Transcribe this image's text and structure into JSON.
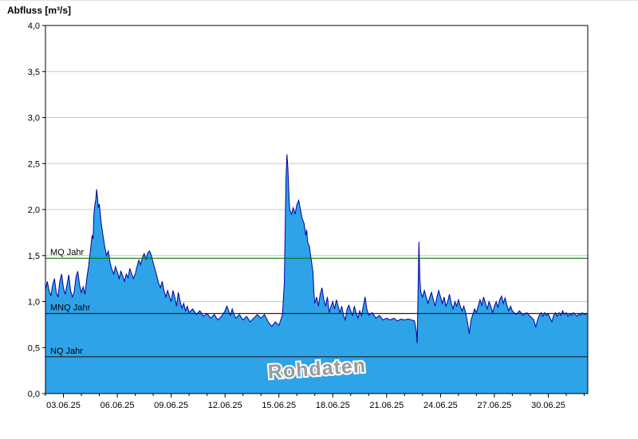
{
  "title": "Abfluss [m³/s]",
  "watermark": "Rohdaten",
  "colors": {
    "area_fill": "#2EA3E8",
    "line": "#0000A0",
    "grid": "#C9C9C9",
    "axis": "#000000",
    "watermark": "#9A9A9A",
    "background": "#FFFFFF"
  },
  "chart_data": {
    "type": "area",
    "title": "Abfluss [m³/s]",
    "ylabel": "Abfluss [m³/s]",
    "xlabel": "",
    "grid": "horizontal",
    "legend_position": "none",
    "ylim": [
      0,
      4
    ],
    "xlim": [
      0,
      30.2
    ],
    "x_unit": "days (axis starts 02.06.25, labels every 3 days)",
    "yticks": [
      0,
      0.5,
      1,
      1.5,
      2,
      2.5,
      3,
      3.5,
      4
    ],
    "ytick_labels": [
      "0,0",
      "0,5",
      "1,0",
      "1,5",
      "2,0",
      "2,5",
      "3,0",
      "3,5",
      "4,0"
    ],
    "xtick_positions": [
      1,
      4,
      7,
      10,
      13,
      16,
      19,
      22,
      25,
      28
    ],
    "xtick_labels": [
      "03.06.25",
      "06.06.25",
      "09.06.25",
      "12.06.25",
      "15.06.25",
      "18.06.25",
      "21.06.25",
      "24.06.25",
      "27.06.25",
      "30.06.25"
    ],
    "reference_lines": [
      {
        "label": "MQ Jahr",
        "value": 1.47,
        "color": "#007A00"
      },
      {
        "label": "MNQ Jahr",
        "value": 0.87,
        "color": "#222222"
      },
      {
        "label": "NQ Jahr",
        "value": 0.4,
        "color": "#222222"
      }
    ],
    "series": [
      {
        "name": "Rohdaten",
        "points": [
          [
            0,
            1.13
          ],
          [
            0.1,
            1.22
          ],
          [
            0.2,
            1.12
          ],
          [
            0.3,
            1.06
          ],
          [
            0.4,
            1.18
          ],
          [
            0.5,
            1.25
          ],
          [
            0.6,
            1.1
          ],
          [
            0.7,
            1.05
          ],
          [
            0.8,
            1.22
          ],
          [
            0.9,
            1.3
          ],
          [
            1,
            1.15
          ],
          [
            1.1,
            1.08
          ],
          [
            1.2,
            1.18
          ],
          [
            1.3,
            1.29
          ],
          [
            1.4,
            1.12
          ],
          [
            1.5,
            1.05
          ],
          [
            1.6,
            1.1
          ],
          [
            1.7,
            1.27
          ],
          [
            1.8,
            1.33
          ],
          [
            1.9,
            1.18
          ],
          [
            2,
            1.1
          ],
          [
            2.1,
            1.16
          ],
          [
            2.2,
            1.08
          ],
          [
            2.3,
            1.25
          ],
          [
            2.4,
            1.38
          ],
          [
            2.5,
            1.55
          ],
          [
            2.6,
            1.72
          ],
          [
            2.65,
            1.68
          ],
          [
            2.7,
            1.95
          ],
          [
            2.75,
            2.05
          ],
          [
            2.8,
            2.1
          ],
          [
            2.85,
            2.22
          ],
          [
            2.9,
            2.12
          ],
          [
            2.95,
            2.02
          ],
          [
            3,
            2.06
          ],
          [
            3.05,
            1.96
          ],
          [
            3.1,
            1.86
          ],
          [
            3.2,
            1.72
          ],
          [
            3.3,
            1.6
          ],
          [
            3.4,
            1.5
          ],
          [
            3.5,
            1.55
          ],
          [
            3.6,
            1.42
          ],
          [
            3.7,
            1.35
          ],
          [
            3.8,
            1.3
          ],
          [
            3.9,
            1.38
          ],
          [
            4,
            1.32
          ],
          [
            4.1,
            1.25
          ],
          [
            4.2,
            1.33
          ],
          [
            4.3,
            1.28
          ],
          [
            4.4,
            1.22
          ],
          [
            4.5,
            1.3
          ],
          [
            4.6,
            1.26
          ],
          [
            4.7,
            1.36
          ],
          [
            4.8,
            1.3
          ],
          [
            4.9,
            1.25
          ],
          [
            5,
            1.3
          ],
          [
            5.1,
            1.38
          ],
          [
            5.2,
            1.45
          ],
          [
            5.3,
            1.4
          ],
          [
            5.4,
            1.48
          ],
          [
            5.5,
            1.52
          ],
          [
            5.6,
            1.46
          ],
          [
            5.7,
            1.53
          ],
          [
            5.8,
            1.55
          ],
          [
            5.9,
            1.5
          ],
          [
            6,
            1.42
          ],
          [
            6.1,
            1.35
          ],
          [
            6.2,
            1.28
          ],
          [
            6.3,
            1.2
          ],
          [
            6.4,
            1.15
          ],
          [
            6.5,
            1.22
          ],
          [
            6.6,
            1.12
          ],
          [
            6.7,
            1.05
          ],
          [
            6.8,
            1.12
          ],
          [
            6.9,
            1.06
          ],
          [
            7,
            1
          ],
          [
            7.1,
            1.12
          ],
          [
            7.2,
            1.05
          ],
          [
            7.3,
            0.95
          ],
          [
            7.4,
            1.1
          ],
          [
            7.5,
            1
          ],
          [
            7.6,
            0.93
          ],
          [
            7.7,
            0.98
          ],
          [
            7.8,
            0.9
          ],
          [
            7.9,
            0.95
          ],
          [
            8,
            0.88
          ],
          [
            8.2,
            0.92
          ],
          [
            8.4,
            0.86
          ],
          [
            8.6,
            0.9
          ],
          [
            8.8,
            0.84
          ],
          [
            9,
            0.87
          ],
          [
            9.2,
            0.82
          ],
          [
            9.4,
            0.86
          ],
          [
            9.6,
            0.8
          ],
          [
            9.8,
            0.84
          ],
          [
            10,
            0.9
          ],
          [
            10.1,
            0.95
          ],
          [
            10.2,
            0.9
          ],
          [
            10.3,
            0.85
          ],
          [
            10.4,
            0.92
          ],
          [
            10.5,
            0.86
          ],
          [
            10.6,
            0.82
          ],
          [
            10.8,
            0.86
          ],
          [
            11,
            0.8
          ],
          [
            11.2,
            0.84
          ],
          [
            11.4,
            0.78
          ],
          [
            11.6,
            0.82
          ],
          [
            11.8,
            0.86
          ],
          [
            12,
            0.82
          ],
          [
            12.2,
            0.86
          ],
          [
            12.4,
            0.78
          ],
          [
            12.6,
            0.73
          ],
          [
            12.8,
            0.78
          ],
          [
            13,
            0.74
          ],
          [
            13.1,
            0.8
          ],
          [
            13.2,
            0.86
          ],
          [
            13.3,
            1.2
          ],
          [
            13.35,
            1.8
          ],
          [
            13.4,
            2.35
          ],
          [
            13.45,
            2.6
          ],
          [
            13.5,
            2.45
          ],
          [
            13.55,
            2.2
          ],
          [
            13.6,
            2
          ],
          [
            13.7,
            1.95
          ],
          [
            13.8,
            2.02
          ],
          [
            13.9,
            1.95
          ],
          [
            14,
            2.05
          ],
          [
            14.1,
            2.1
          ],
          [
            14.2,
            2
          ],
          [
            14.3,
            1.9
          ],
          [
            14.4,
            1.85
          ],
          [
            14.5,
            1.72
          ],
          [
            14.55,
            1.78
          ],
          [
            14.6,
            1.65
          ],
          [
            14.7,
            1.6
          ],
          [
            14.75,
            1.52
          ],
          [
            14.8,
            1.46
          ],
          [
            14.9,
            1.32
          ],
          [
            14.95,
            1.1
          ],
          [
            15,
            0.98
          ],
          [
            15.1,
            1.05
          ],
          [
            15.2,
            0.95
          ],
          [
            15.3,
            1.08
          ],
          [
            15.4,
            1.15
          ],
          [
            15.5,
            1.02
          ],
          [
            15.6,
            0.95
          ],
          [
            15.7,
            1.05
          ],
          [
            15.8,
            0.88
          ],
          [
            15.9,
            0.95
          ],
          [
            16,
            1
          ],
          [
            16.1,
            0.92
          ],
          [
            16.2,
            1.02
          ],
          [
            16.3,
            0.95
          ],
          [
            16.4,
            0.88
          ],
          [
            16.5,
            0.95
          ],
          [
            16.6,
            0.85
          ],
          [
            16.7,
            0.8
          ],
          [
            16.8,
            0.92
          ],
          [
            16.9,
            0.96
          ],
          [
            17,
            0.9
          ],
          [
            17.1,
            0.85
          ],
          [
            17.2,
            0.95
          ],
          [
            17.3,
            0.88
          ],
          [
            17.4,
            0.82
          ],
          [
            17.5,
            0.9
          ],
          [
            17.6,
            0.85
          ],
          [
            17.7,
            0.95
          ],
          [
            17.8,
            1.05
          ],
          [
            17.9,
            0.92
          ],
          [
            18,
            0.85
          ],
          [
            18.2,
            0.88
          ],
          [
            18.4,
            0.82
          ],
          [
            18.6,
            0.85
          ],
          [
            18.8,
            0.8
          ],
          [
            19,
            0.82
          ],
          [
            19.2,
            0.8
          ],
          [
            19.4,
            0.82
          ],
          [
            19.6,
            0.79
          ],
          [
            19.8,
            0.81
          ],
          [
            20,
            0.8
          ],
          [
            20.2,
            0.81
          ],
          [
            20.4,
            0.8
          ],
          [
            20.55,
            0.79
          ],
          [
            20.65,
            0.68
          ],
          [
            20.7,
            0.55
          ],
          [
            20.75,
            1.1
          ],
          [
            20.8,
            1.65
          ],
          [
            20.85,
            1.25
          ],
          [
            20.9,
            1.1
          ],
          [
            21,
            1.05
          ],
          [
            21.1,
            1.12
          ],
          [
            21.2,
            1.05
          ],
          [
            21.3,
            0.98
          ],
          [
            21.4,
            1.05
          ],
          [
            21.5,
            1.1
          ],
          [
            21.6,
            1.02
          ],
          [
            21.7,
            0.95
          ],
          [
            21.8,
            1.05
          ],
          [
            21.9,
            1.12
          ],
          [
            22,
            1.05
          ],
          [
            22.1,
            0.98
          ],
          [
            22.2,
            1.05
          ],
          [
            22.3,
            0.95
          ],
          [
            22.4,
            1
          ],
          [
            22.5,
            1.08
          ],
          [
            22.6,
            0.98
          ],
          [
            22.7,
            0.92
          ],
          [
            22.8,
            1
          ],
          [
            22.9,
            0.95
          ],
          [
            23,
            1.02
          ],
          [
            23.1,
            0.95
          ],
          [
            23.2,
            0.9
          ],
          [
            23.3,
            0.95
          ],
          [
            23.4,
            0.88
          ],
          [
            23.5,
            0.78
          ],
          [
            23.6,
            0.65
          ],
          [
            23.7,
            0.8
          ],
          [
            23.8,
            0.86
          ],
          [
            23.9,
            0.92
          ],
          [
            24,
            0.88
          ],
          [
            24.1,
            0.95
          ],
          [
            24.2,
            1.02
          ],
          [
            24.3,
            0.96
          ],
          [
            24.4,
            1.05
          ],
          [
            24.5,
            0.98
          ],
          [
            24.6,
            0.92
          ],
          [
            24.7,
            1
          ],
          [
            24.8,
            0.95
          ],
          [
            24.9,
            0.88
          ],
          [
            25,
            0.95
          ],
          [
            25.1,
            1
          ],
          [
            25.2,
            0.94
          ],
          [
            25.3,
            1.02
          ],
          [
            25.4,
            1.06
          ],
          [
            25.5,
            0.98
          ],
          [
            25.6,
            1.04
          ],
          [
            25.7,
            0.96
          ],
          [
            25.8,
            0.9
          ],
          [
            25.9,
            0.95
          ],
          [
            26,
            0.9
          ],
          [
            26.2,
            0.86
          ],
          [
            26.4,
            0.9
          ],
          [
            26.6,
            0.85
          ],
          [
            26.8,
            0.88
          ],
          [
            27,
            0.84
          ],
          [
            27.2,
            0.8
          ],
          [
            27.3,
            0.72
          ],
          [
            27.4,
            0.8
          ],
          [
            27.5,
            0.85
          ],
          [
            27.6,
            0.88
          ],
          [
            27.7,
            0.84
          ],
          [
            27.8,
            0.88
          ],
          [
            27.9,
            0.85
          ],
          [
            28,
            0.87
          ],
          [
            28.1,
            0.82
          ],
          [
            28.2,
            0.78
          ],
          [
            28.3,
            0.85
          ],
          [
            28.4,
            0.88
          ],
          [
            28.5,
            0.84
          ],
          [
            28.6,
            0.88
          ],
          [
            28.7,
            0.85
          ],
          [
            28.8,
            0.9
          ],
          [
            28.9,
            0.86
          ],
          [
            29,
            0.88
          ],
          [
            29.1,
            0.84
          ],
          [
            29.2,
            0.87
          ],
          [
            29.3,
            0.85
          ],
          [
            29.4,
            0.88
          ],
          [
            29.5,
            0.86
          ],
          [
            29.6,
            0.84
          ],
          [
            29.7,
            0.87
          ],
          [
            29.8,
            0.85
          ],
          [
            29.9,
            0.88
          ],
          [
            30,
            0.86
          ],
          [
            30.2,
            0.87
          ]
        ]
      }
    ]
  }
}
